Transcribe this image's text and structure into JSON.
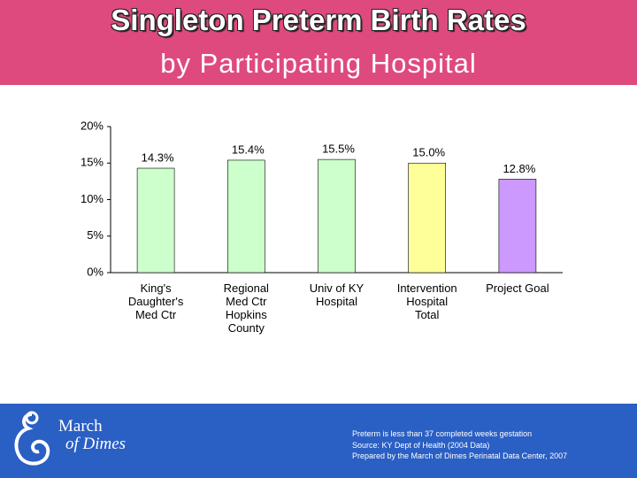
{
  "header": {
    "title": "Singleton Preterm Birth Rates",
    "subtitle": "by Participating Hospital"
  },
  "chart_data": {
    "type": "bar",
    "categories": [
      "King's\nDaughter's\nMed Ctr",
      "Regional\nMed Ctr\nHopkins\nCounty",
      "Univ of KY\nHospital",
      "Intervention\nHospital\nTotal",
      "Project Goal"
    ],
    "values": [
      14.3,
      15.4,
      15.5,
      15.0,
      12.8
    ],
    "value_labels": [
      "14.3%",
      "15.4%",
      "15.5%",
      "15.0%",
      "12.8%"
    ],
    "colors": [
      "#ccffcc",
      "#ccffcc",
      "#ccffcc",
      "#ffff99",
      "#cc99ff"
    ],
    "ylim": [
      0,
      20
    ],
    "yticks": [
      {
        "value": 0,
        "label": "0%"
      },
      {
        "value": 5,
        "label": "5%"
      },
      {
        "value": 10,
        "label": "10%"
      },
      {
        "value": 15,
        "label": "15%"
      },
      {
        "value": 20,
        "label": "20%"
      }
    ],
    "grid": false
  },
  "footer": {
    "logo": [
      "March",
      "of Dimes"
    ],
    "notes": [
      "Preterm is less than 37 completed weeks gestation",
      "Source: KY Dept of Health (2004 Data)",
      "Prepared by the March of Dimes Perinatal Data Center, 2007"
    ]
  }
}
